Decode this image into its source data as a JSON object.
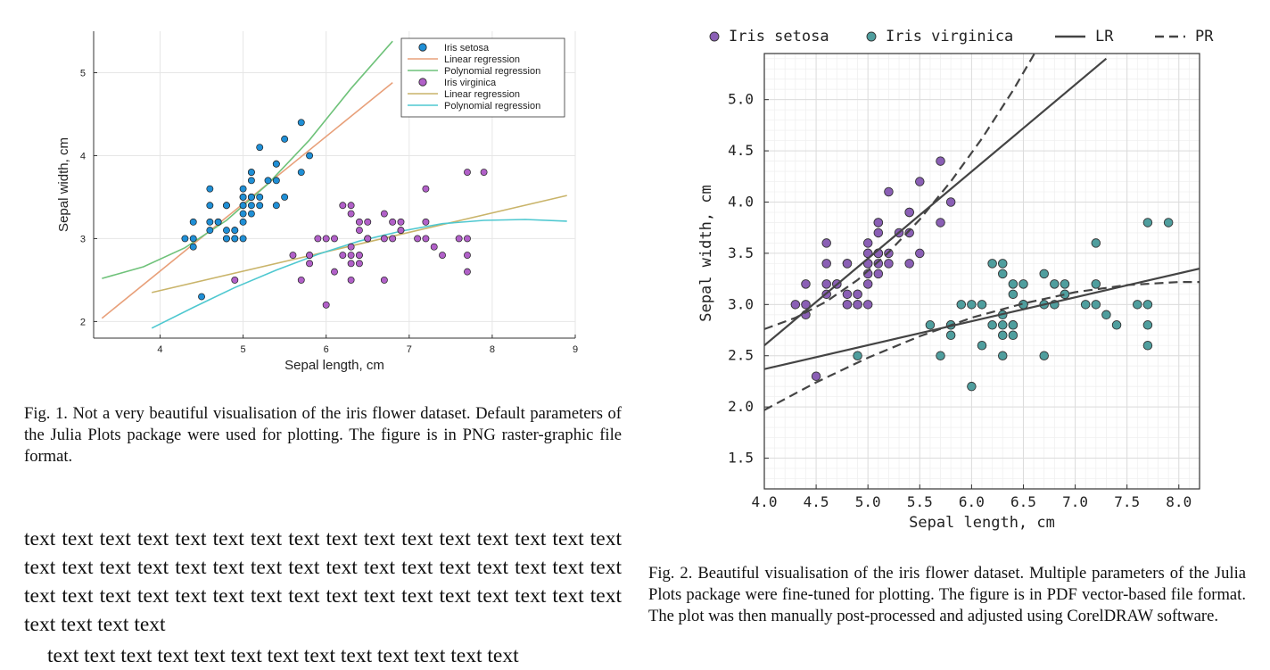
{
  "captions": {
    "fig1": "Fig. 1.  Not a very beautiful visualisation of the iris flower dataset. Default parameters of the Julia Plots package were used for plotting. The figure is in PNG raster-graphic file format.",
    "fig2": "Fig. 2.  Beautiful visualisation of the iris flower dataset. Multiple parameters of the Julia Plots package were fine-tuned for plotting. The figure is in PDF vector-based file format. The plot was then manually post-processed and adjusted using CorelDRAW software."
  },
  "body_text": {
    "paragraph1": "text text text text text text text text text text text text text text text text text text text text text text text text text text text text text text text text text text text text text text text text text text text text text text text text text text text text",
    "paragraph2": "text text text text text text text text text text text text text"
  },
  "chart_data": [
    {
      "type": "scatter",
      "title": "",
      "xlabel": "Sepal length, cm",
      "ylabel": "Sepal width, cm",
      "xlim": [
        3.2,
        9
      ],
      "ylim": [
        1.8,
        5.5
      ],
      "xticks": [
        "4",
        "5",
        "6",
        "7",
        "8",
        "9"
      ],
      "yticks": [
        "2",
        "3",
        "4",
        "5"
      ],
      "grid": true,
      "legend_position": "top-right",
      "legend": [
        "Iris setosa",
        "Linear regression",
        "Polynomial regression",
        "Iris virginica",
        "Linear regression",
        "Polynomial regression"
      ],
      "series": [
        {
          "name": "Iris setosa",
          "kind": "points",
          "color": "#1f8fd6",
          "x": [
            4.3,
            4.4,
            4.4,
            4.4,
            4.5,
            4.6,
            4.6,
            4.6,
            4.6,
            4.7,
            4.7,
            4.8,
            4.8,
            4.8,
            4.8,
            4.8,
            4.9,
            4.9,
            4.9,
            4.9,
            5.0,
            5.0,
            5.0,
            5.0,
            5.0,
            5.0,
            5.0,
            5.0,
            5.1,
            5.1,
            5.1,
            5.1,
            5.1,
            5.1,
            5.1,
            5.1,
            5.2,
            5.2,
            5.2,
            5.3,
            5.4,
            5.4,
            5.4,
            5.4,
            5.5,
            5.5,
            5.7,
            5.7,
            5.8
          ],
          "y": [
            3.0,
            2.9,
            3.0,
            3.2,
            2.3,
            3.1,
            3.2,
            3.4,
            3.6,
            3.2,
            3.2,
            3.0,
            3.0,
            3.1,
            3.4,
            3.4,
            3.0,
            3.1,
            3.1,
            3.0,
            3.0,
            3.2,
            3.3,
            3.4,
            3.4,
            3.5,
            3.5,
            3.6,
            3.3,
            3.4,
            3.5,
            3.5,
            3.7,
            3.8,
            3.8,
            3.5,
            3.4,
            3.5,
            4.1,
            3.7,
            3.4,
            3.7,
            3.9,
            3.9,
            3.5,
            4.2,
            3.8,
            4.4,
            4.0
          ]
        },
        {
          "name": "Linear regression",
          "kind": "line",
          "color": "#e8a07a",
          "x": [
            3.3,
            6.8
          ],
          "y": [
            2.04,
            4.88
          ]
        },
        {
          "name": "Polynomial regression",
          "kind": "curve",
          "color": "#6fc27a",
          "x": [
            3.3,
            3.8,
            4.3,
            4.8,
            5.3,
            5.8,
            6.3,
            6.8
          ],
          "y": [
            2.52,
            2.66,
            2.89,
            3.22,
            3.66,
            4.19,
            4.81,
            5.38
          ]
        },
        {
          "name": "Iris virginica",
          "kind": "points",
          "color": "#b160c8",
          "x": [
            4.9,
            5.6,
            5.7,
            5.8,
            5.8,
            5.8,
            5.9,
            6.0,
            6.0,
            6.1,
            6.1,
            6.2,
            6.2,
            6.3,
            6.3,
            6.3,
            6.3,
            6.3,
            6.3,
            6.4,
            6.4,
            6.4,
            6.4,
            6.4,
            6.5,
            6.5,
            6.5,
            6.5,
            6.7,
            6.7,
            6.7,
            6.8,
            6.8,
            6.9,
            6.9,
            6.9,
            7.1,
            7.2,
            7.2,
            7.2,
            7.3,
            7.4,
            7.6,
            7.7,
            7.7,
            7.7,
            7.7,
            7.9
          ],
          "y": [
            2.5,
            2.8,
            2.5,
            2.8,
            2.7,
            2.8,
            3.0,
            2.2,
            3.0,
            3.0,
            2.6,
            3.4,
            2.8,
            3.3,
            2.9,
            2.7,
            2.5,
            3.4,
            2.8,
            3.2,
            2.8,
            2.7,
            2.8,
            3.1,
            3.0,
            3.2,
            3.0,
            3.0,
            2.5,
            3.3,
            3.0,
            3.0,
            3.2,
            3.1,
            3.2,
            3.1,
            3.0,
            3.6,
            3.2,
            3.0,
            2.9,
            2.8,
            3.0,
            3.8,
            2.6,
            2.8,
            3.0,
            3.8
          ]
        },
        {
          "name": "Linear regression",
          "kind": "line",
          "color": "#c9b46a",
          "x": [
            3.9,
            8.9
          ],
          "y": [
            2.35,
            3.52
          ]
        },
        {
          "name": "Polynomial regression",
          "kind": "curve",
          "color": "#4fc8d0",
          "x": [
            3.9,
            4.4,
            4.9,
            5.4,
            5.9,
            6.4,
            6.9,
            7.4,
            7.9,
            8.4,
            8.9
          ],
          "y": [
            1.92,
            2.17,
            2.41,
            2.62,
            2.81,
            2.97,
            3.09,
            3.18,
            3.22,
            3.23,
            3.21
          ]
        }
      ]
    },
    {
      "type": "scatter",
      "title": "",
      "xlabel": "Sepal length, cm",
      "ylabel": "Sepal width, cm",
      "xlim": [
        4.0,
        8.2
      ],
      "ylim": [
        1.2,
        5.45
      ],
      "xticks": [
        "4.0",
        "4.5",
        "5.0",
        "5.5",
        "6.0",
        "6.5",
        "7.0",
        "7.5",
        "8.0"
      ],
      "yticks": [
        "1.5",
        "2.0",
        "2.5",
        "3.0",
        "3.5",
        "4.0",
        "4.5",
        "5.0"
      ],
      "grid": true,
      "legend_position": "top",
      "legend": [
        "Iris setosa",
        "Iris virginica",
        "LR",
        "PR"
      ],
      "series": [
        {
          "name": "Iris setosa",
          "kind": "points",
          "color": "#8a5fb5",
          "x": [
            4.3,
            4.4,
            4.4,
            4.4,
            4.5,
            4.6,
            4.6,
            4.6,
            4.6,
            4.7,
            4.7,
            4.8,
            4.8,
            4.8,
            4.8,
            4.8,
            4.9,
            4.9,
            4.9,
            4.9,
            5.0,
            5.0,
            5.0,
            5.0,
            5.0,
            5.0,
            5.0,
            5.0,
            5.1,
            5.1,
            5.1,
            5.1,
            5.1,
            5.1,
            5.1,
            5.1,
            5.2,
            5.2,
            5.2,
            5.3,
            5.4,
            5.4,
            5.4,
            5.4,
            5.5,
            5.5,
            5.7,
            5.7,
            5.8
          ],
          "y": [
            3.0,
            2.9,
            3.0,
            3.2,
            2.3,
            3.1,
            3.2,
            3.4,
            3.6,
            3.2,
            3.2,
            3.0,
            3.0,
            3.1,
            3.4,
            3.4,
            3.0,
            3.1,
            3.1,
            3.0,
            3.0,
            3.2,
            3.3,
            3.4,
            3.4,
            3.5,
            3.5,
            3.6,
            3.3,
            3.4,
            3.5,
            3.5,
            3.7,
            3.8,
            3.8,
            3.5,
            3.4,
            3.5,
            4.1,
            3.7,
            3.4,
            3.7,
            3.9,
            3.9,
            3.5,
            4.2,
            3.8,
            4.4,
            4.0
          ]
        },
        {
          "name": "Iris virginica",
          "kind": "points",
          "color": "#4f9e9e",
          "x": [
            4.9,
            5.6,
            5.7,
            5.8,
            5.8,
            5.8,
            5.9,
            6.0,
            6.0,
            6.1,
            6.1,
            6.2,
            6.2,
            6.3,
            6.3,
            6.3,
            6.3,
            6.3,
            6.3,
            6.4,
            6.4,
            6.4,
            6.4,
            6.4,
            6.5,
            6.5,
            6.5,
            6.5,
            6.7,
            6.7,
            6.7,
            6.8,
            6.8,
            6.9,
            6.9,
            6.9,
            7.1,
            7.2,
            7.2,
            7.2,
            7.3,
            7.4,
            7.6,
            7.7,
            7.7,
            7.7,
            7.7,
            7.9
          ],
          "y": [
            2.5,
            2.8,
            2.5,
            2.8,
            2.7,
            2.8,
            3.0,
            2.2,
            3.0,
            3.0,
            2.6,
            3.4,
            2.8,
            3.3,
            2.9,
            2.7,
            2.5,
            3.4,
            2.8,
            3.2,
            2.8,
            2.7,
            2.8,
            3.1,
            3.0,
            3.2,
            3.0,
            3.0,
            2.5,
            3.3,
            3.0,
            3.0,
            3.2,
            3.1,
            3.2,
            3.1,
            3.0,
            3.6,
            3.2,
            3.0,
            2.9,
            2.8,
            3.0,
            3.8,
            2.6,
            2.8,
            3.0,
            3.8
          ]
        },
        {
          "name": "LR",
          "kind": "line",
          "color": "#444444",
          "dash": false,
          "x": [
            4.0,
            7.3
          ],
          "y": [
            2.6,
            5.4
          ]
        },
        {
          "name": "LR",
          "kind": "line",
          "color": "#444444",
          "dash": false,
          "x": [
            4.0,
            8.2
          ],
          "y": [
            2.37,
            3.35
          ]
        },
        {
          "name": "PR",
          "kind": "curve",
          "color": "#444444",
          "dash": true,
          "x": [
            4.0,
            4.3,
            4.6,
            4.9,
            5.2,
            5.5,
            5.8,
            6.1,
            6.4,
            6.7,
            6.9
          ],
          "y": [
            2.76,
            2.87,
            3.03,
            3.24,
            3.51,
            3.83,
            4.2,
            4.62,
            5.09,
            5.61,
            5.98
          ]
        },
        {
          "name": "PR",
          "kind": "curve",
          "color": "#444444",
          "dash": true,
          "x": [
            4.0,
            4.5,
            5.0,
            5.5,
            6.0,
            6.5,
            7.0,
            7.5,
            8.0,
            8.2
          ],
          "y": [
            1.97,
            2.24,
            2.48,
            2.69,
            2.87,
            3.01,
            3.12,
            3.19,
            3.22,
            3.22
          ]
        }
      ]
    }
  ]
}
